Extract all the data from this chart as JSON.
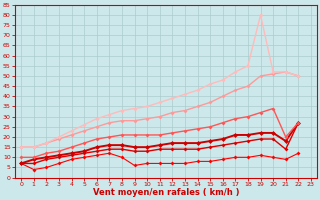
{
  "xlabel": "Vent moyen/en rafales ( km/h )",
  "bg_color": "#cce8ea",
  "grid_color": "#aacccc",
  "axis_color": "#cc0000",
  "label_color": "#cc0000",
  "xlim": [
    -0.5,
    23.5
  ],
  "ylim": [
    0,
    85
  ],
  "xticks": [
    0,
    1,
    2,
    3,
    4,
    5,
    6,
    7,
    8,
    9,
    10,
    11,
    12,
    13,
    14,
    15,
    16,
    17,
    18,
    19,
    20,
    21,
    22,
    23
  ],
  "yticks": [
    0,
    5,
    10,
    15,
    20,
    25,
    30,
    35,
    40,
    45,
    50,
    55,
    60,
    65,
    70,
    75,
    80,
    85
  ],
  "series": [
    {
      "color": "#ff0000",
      "linewidth": 0.8,
      "markersize": 2.0,
      "data": [
        [
          0,
          7
        ],
        [
          1,
          4
        ],
        [
          2,
          5
        ],
        [
          3,
          7
        ],
        [
          4,
          9
        ],
        [
          5,
          10
        ],
        [
          6,
          11
        ],
        [
          7,
          12
        ],
        [
          8,
          10
        ],
        [
          9,
          6
        ],
        [
          10,
          7
        ],
        [
          11,
          7
        ],
        [
          12,
          7
        ],
        [
          13,
          7
        ],
        [
          14,
          8
        ],
        [
          15,
          8
        ],
        [
          16,
          9
        ],
        [
          17,
          10
        ],
        [
          18,
          10
        ],
        [
          19,
          11
        ],
        [
          20,
          10
        ],
        [
          21,
          9
        ],
        [
          22,
          12
        ]
      ]
    },
    {
      "color": "#dd0000",
      "linewidth": 1.0,
      "markersize": 2.0,
      "data": [
        [
          0,
          7
        ],
        [
          1,
          7
        ],
        [
          2,
          9
        ],
        [
          3,
          10
        ],
        [
          4,
          11
        ],
        [
          5,
          12
        ],
        [
          6,
          13
        ],
        [
          7,
          14
        ],
        [
          8,
          14
        ],
        [
          9,
          13
        ],
        [
          10,
          13
        ],
        [
          11,
          14
        ],
        [
          12,
          14
        ],
        [
          13,
          14
        ],
        [
          14,
          14
        ],
        [
          15,
          15
        ],
        [
          16,
          16
        ],
        [
          17,
          17
        ],
        [
          18,
          18
        ],
        [
          19,
          19
        ],
        [
          20,
          19
        ],
        [
          21,
          14
        ],
        [
          22,
          27
        ]
      ]
    },
    {
      "color": "#cc0000",
      "linewidth": 1.4,
      "markersize": 2.5,
      "data": [
        [
          0,
          7
        ],
        [
          1,
          9
        ],
        [
          2,
          10
        ],
        [
          3,
          11
        ],
        [
          4,
          12
        ],
        [
          5,
          13
        ],
        [
          6,
          15
        ],
        [
          7,
          16
        ],
        [
          8,
          16
        ],
        [
          9,
          15
        ],
        [
          10,
          15
        ],
        [
          11,
          16
        ],
        [
          12,
          17
        ],
        [
          13,
          17
        ],
        [
          14,
          17
        ],
        [
          15,
          18
        ],
        [
          16,
          19
        ],
        [
          17,
          21
        ],
        [
          18,
          21
        ],
        [
          19,
          22
        ],
        [
          20,
          22
        ],
        [
          21,
          18
        ],
        [
          22,
          27
        ]
      ]
    },
    {
      "color": "#ff5555",
      "linewidth": 1.0,
      "markersize": 2.0,
      "data": [
        [
          0,
          10
        ],
        [
          1,
          10
        ],
        [
          2,
          12
        ],
        [
          3,
          13
        ],
        [
          4,
          15
        ],
        [
          5,
          17
        ],
        [
          6,
          19
        ],
        [
          7,
          20
        ],
        [
          8,
          21
        ],
        [
          9,
          21
        ],
        [
          10,
          21
        ],
        [
          11,
          21
        ],
        [
          12,
          22
        ],
        [
          13,
          23
        ],
        [
          14,
          24
        ],
        [
          15,
          25
        ],
        [
          16,
          27
        ],
        [
          17,
          29
        ],
        [
          18,
          30
        ],
        [
          19,
          32
        ],
        [
          20,
          34
        ],
        [
          21,
          20
        ],
        [
          22,
          27
        ]
      ]
    },
    {
      "color": "#ff9999",
      "linewidth": 1.0,
      "markersize": 2.0,
      "data": [
        [
          0,
          15
        ],
        [
          1,
          15
        ],
        [
          2,
          17
        ],
        [
          3,
          19
        ],
        [
          4,
          21
        ],
        [
          5,
          23
        ],
        [
          6,
          25
        ],
        [
          7,
          27
        ],
        [
          8,
          28
        ],
        [
          9,
          28
        ],
        [
          10,
          29
        ],
        [
          11,
          30
        ],
        [
          12,
          32
        ],
        [
          13,
          33
        ],
        [
          14,
          35
        ],
        [
          15,
          37
        ],
        [
          16,
          40
        ],
        [
          17,
          43
        ],
        [
          18,
          45
        ],
        [
          19,
          50
        ],
        [
          20,
          51
        ],
        [
          21,
          52
        ],
        [
          22,
          50
        ]
      ]
    },
    {
      "color": "#ffbbbb",
      "linewidth": 1.0,
      "markersize": 2.0,
      "data": [
        [
          0,
          15
        ],
        [
          1,
          15
        ],
        [
          2,
          17
        ],
        [
          3,
          20
        ],
        [
          4,
          23
        ],
        [
          5,
          26
        ],
        [
          6,
          29
        ],
        [
          7,
          31
        ],
        [
          8,
          33
        ],
        [
          9,
          34
        ],
        [
          10,
          35
        ],
        [
          11,
          37
        ],
        [
          12,
          39
        ],
        [
          13,
          41
        ],
        [
          14,
          43
        ],
        [
          15,
          46
        ],
        [
          16,
          48
        ],
        [
          17,
          52
        ],
        [
          18,
          55
        ],
        [
          19,
          80
        ],
        [
          20,
          52
        ],
        [
          21,
          52
        ],
        [
          22,
          50
        ]
      ]
    }
  ]
}
